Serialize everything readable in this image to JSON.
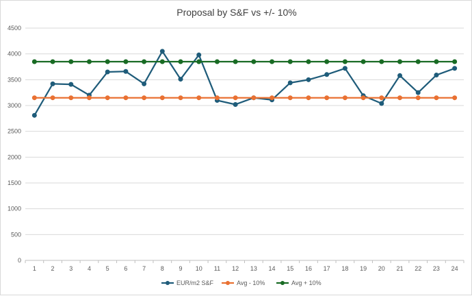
{
  "chart_data": {
    "type": "line",
    "title": "Proposal by S&F vs +/- 10%",
    "x": [
      1,
      2,
      3,
      4,
      5,
      6,
      7,
      8,
      9,
      10,
      11,
      12,
      13,
      14,
      15,
      16,
      17,
      18,
      19,
      20,
      21,
      22,
      23,
      24
    ],
    "x_tick_labels": [
      "1",
      "2",
      "3",
      "4",
      "5",
      "6",
      "7",
      "8",
      "9",
      "10",
      "11",
      "12",
      "13",
      "14",
      "15",
      "16",
      "17",
      "18",
      "19",
      "20",
      "21",
      "22",
      "23",
      "24"
    ],
    "y_tick_labels": [
      "0",
      "500",
      "1000",
      "1500",
      "2000",
      "2500",
      "3000",
      "3500",
      "4000",
      "4500"
    ],
    "ylim": [
      0,
      4500
    ],
    "grid": true,
    "legend_position": "bottom",
    "series": [
      {
        "name": "EUR/m2 S&F",
        "color": "#1f5c7a",
        "values": [
          2810,
          3420,
          3410,
          3200,
          3650,
          3660,
          3420,
          4050,
          3510,
          3980,
          3100,
          3020,
          3150,
          3110,
          3440,
          3500,
          3600,
          3720,
          3190,
          3040,
          3580,
          3250,
          3590,
          3720
        ]
      },
      {
        "name": "Avg - 10%",
        "color": "#e97132",
        "values": [
          3150,
          3150,
          3150,
          3150,
          3150,
          3150,
          3150,
          3150,
          3150,
          3150,
          3150,
          3150,
          3150,
          3150,
          3150,
          3150,
          3150,
          3150,
          3150,
          3150,
          3150,
          3150,
          3150,
          3150
        ]
      },
      {
        "name": "Avg + 10%",
        "color": "#196b24",
        "values": [
          3850,
          3850,
          3850,
          3850,
          3850,
          3850,
          3850,
          3850,
          3850,
          3850,
          3850,
          3850,
          3850,
          3850,
          3850,
          3850,
          3850,
          3850,
          3850,
          3850,
          3850,
          3850,
          3850,
          3850
        ]
      }
    ]
  }
}
